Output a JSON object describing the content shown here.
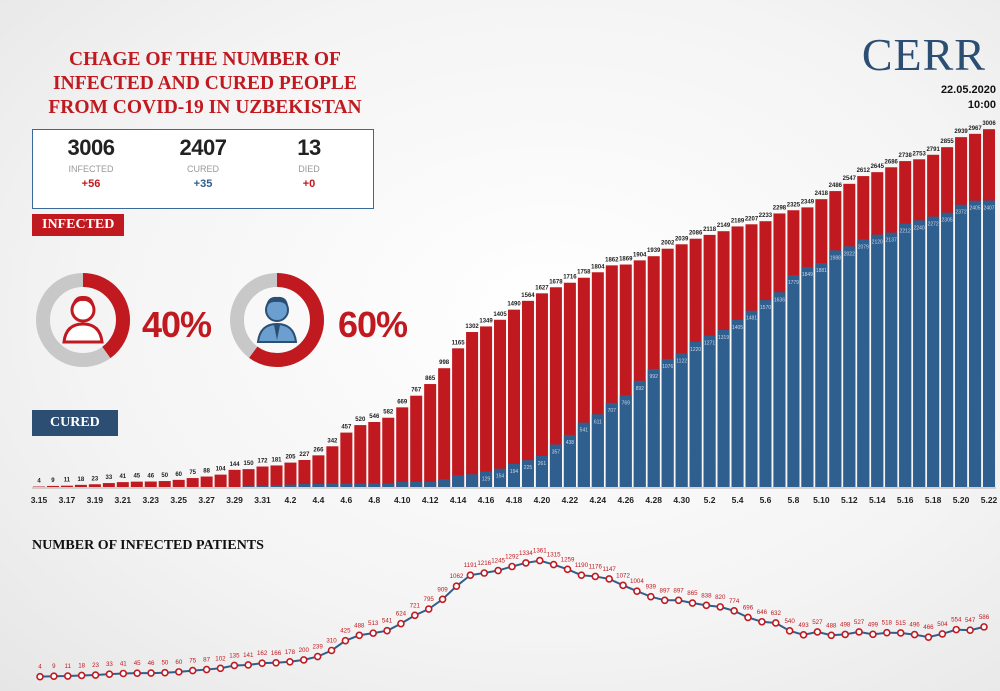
{
  "header": {
    "title_lines": [
      "CHAGE OF THE NUMBER OF",
      "INFECTED AND CURED PEOPLE",
      "FROM COVID-19 IN UZBEKISTAN"
    ],
    "logo": "CERR",
    "date": "22.05.2020",
    "time": "10:00"
  },
  "stats": [
    {
      "value": "3006",
      "label": "INFECTED",
      "delta": "+56",
      "color": "#c0191f"
    },
    {
      "value": "2407",
      "label": "CURED",
      "delta": "+35",
      "color": "#2f5f8f"
    },
    {
      "value": "13",
      "label": "DIED",
      "delta": "+0",
      "color": "#c0191f"
    }
  ],
  "labels": {
    "infected_tag": "INFECTED",
    "cured_tag": "CURED",
    "line_title": "NUMBER OF INFECTED PATIENTS"
  },
  "gender": {
    "female_pct": "40%",
    "male_pct": "60%",
    "female_value": 40,
    "male_value": 60,
    "icons": [
      "female-icon",
      "male-icon"
    ]
  },
  "colors": {
    "infected": "#c0191f",
    "cured": "#2f5f8f",
    "line": "#2f5f8f",
    "marker": "#c0191f"
  },
  "chart_data": [
    {
      "type": "bar",
      "categories": [
        "3.15",
        "3.16",
        "3.17",
        "3.18",
        "3.19",
        "3.20",
        "3.21",
        "3.22",
        "3.23",
        "3.24",
        "3.25",
        "3.26",
        "3.27",
        "3.28",
        "3.29",
        "3.30",
        "3.31",
        "4.1",
        "4.2",
        "4.3",
        "4.4",
        "4.5",
        "4.6",
        "4.7",
        "4.8",
        "4.9",
        "4.10",
        "4.11",
        "4.12",
        "4.13",
        "4.14",
        "4.15",
        "4.16",
        "4.17",
        "4.18",
        "4.19",
        "4.20",
        "4.21",
        "4.22",
        "4.23",
        "4.24",
        "4.25",
        "4.26",
        "4.27",
        "4.28",
        "4.29",
        "4.30",
        "5.1",
        "5.2",
        "5.3",
        "5.4",
        "5.5",
        "5.6",
        "5.7",
        "5.8",
        "5.9",
        "5.10",
        "5.11",
        "5.12",
        "5.13",
        "5.14",
        "5.15",
        "5.16",
        "5.17",
        "5.18",
        "5.19",
        "5.20",
        "5.21",
        "5.22"
      ],
      "tick_labels": [
        "3.15",
        "3.17",
        "3.19",
        "3.21",
        "3.23",
        "3.25",
        "3.27",
        "3.29",
        "3.31",
        "4.2",
        "4.4",
        "4.6",
        "4.8",
        "4.10",
        "4.12",
        "4.14",
        "4.16",
        "4.18",
        "4.20",
        "4.22",
        "4.24",
        "4.26",
        "4.28",
        "4.30",
        "5.2",
        "5.4",
        "5.6",
        "5.8",
        "5.10",
        "5.12",
        "5.14",
        "5.16",
        "5.18",
        "5.20",
        "5.22"
      ],
      "series": [
        {
          "name": "INFECTED",
          "values": [
            4,
            9,
            11,
            18,
            23,
            33,
            41,
            45,
            46,
            50,
            60,
            75,
            88,
            104,
            144,
            150,
            172,
            181,
            205,
            227,
            266,
            342,
            457,
            520,
            546,
            582,
            669,
            767,
            865,
            998,
            1165,
            1302,
            1349,
            1405,
            1490,
            1564,
            1627,
            1678,
            1716,
            1758,
            1804,
            1862,
            1869,
            1904,
            1939,
            2002,
            2039,
            2086,
            2118,
            2149,
            2189,
            2207,
            2233,
            2298,
            2325,
            2349,
            2418,
            2486,
            2547,
            2612,
            2645,
            2686,
            2738,
            2753,
            2791,
            2855,
            2939,
            2967,
            3006
          ]
        },
        {
          "name": "CURED",
          "values": [
            0,
            0,
            0,
            0,
            0,
            0,
            0,
            0,
            0,
            0,
            0,
            0,
            0,
            0,
            0,
            7,
            8,
            13,
            20,
            25,
            25,
            30,
            30,
            30,
            30,
            30,
            42,
            42,
            44,
            65,
            99,
            107,
            129,
            154,
            194,
            225,
            261,
            357,
            438,
            541,
            611,
            707,
            769,
            892,
            992,
            1076,
            1122,
            1220,
            1271,
            1319,
            1405,
            1481,
            1570,
            1636,
            1779,
            1849,
            1881,
            1988,
            2022,
            2079,
            2120,
            2137,
            2212,
            2240,
            2272,
            2305,
            2372,
            2405,
            2407
          ]
        }
      ],
      "ylim": [
        0,
        3100
      ]
    },
    {
      "type": "line",
      "title": "NUMBER OF INFECTED PATIENTS",
      "series": [
        {
          "name": "",
          "values": [
            4,
            9,
            11,
            18,
            23,
            33,
            41,
            45,
            46,
            50,
            60,
            75,
            87,
            102,
            135,
            141,
            162,
            166,
            178,
            200,
            239,
            310,
            425,
            488,
            513,
            541,
            624,
            721,
            795,
            909,
            1062,
            1191,
            1216,
            1245,
            1292,
            1334,
            1361,
            1315,
            1259,
            1190,
            1176,
            1147,
            1072,
            1004,
            939,
            897,
            897,
            865,
            838,
            820,
            774,
            696,
            646,
            632,
            540,
            493,
            527,
            488,
            498,
            527,
            499,
            518,
            515,
            496,
            466,
            504,
            554,
            547,
            586
          ]
        }
      ],
      "ylim": [
        0,
        1450
      ]
    }
  ]
}
